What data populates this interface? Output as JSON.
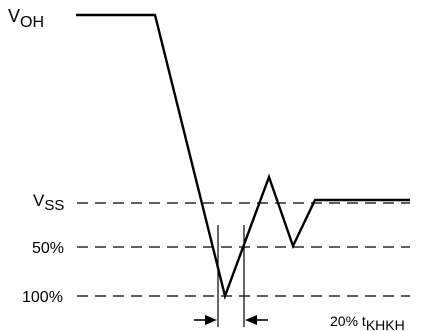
{
  "labels": {
    "voh_main": "V",
    "voh_sub": "OH",
    "vss_main": "V",
    "vss_sub": "SS",
    "pct50": "50%",
    "pct100": "100%",
    "timing_main": "20% t",
    "timing_sub": "KHKH"
  }
}
